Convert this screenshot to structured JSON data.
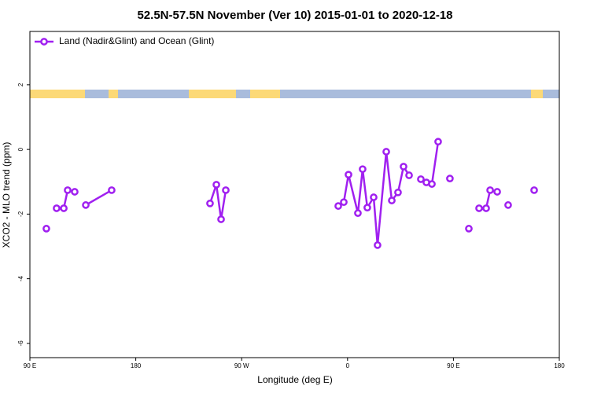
{
  "chart_data": {
    "type": "line",
    "title": "52.5N-57.5N November (Ver 10)   2015-01-01 to 2020-12-18",
    "x_label": "Longitude (deg E)",
    "y_label": "XCO2 - MLO trend (ppm)",
    "xlim": [
      90,
      540
    ],
    "ylim": [
      -6.44,
      3.65
    ],
    "xticks": [
      90,
      180,
      {
        "value": 270,
        "label": "90 W"
      },
      {
        "value": 360,
        "label": "0"
      },
      {
        "value": 450,
        "label": "90 E"
      },
      {
        "value": 540,
        "label": "180"
      }
    ],
    "xtick0_label": "90 E",
    "yticks": [
      2,
      0,
      -2,
      -4,
      -6
    ],
    "legend": "top-left",
    "series": [
      {
        "name": "Land (Nadir&Glint) and Ocean (Glint)",
        "color": "#a020f0",
        "x": [
          104,
          null,
          112.7,
          118.8,
          122.1,
          128.1,
          null,
          137.5,
          159.5,
          null,
          243.1,
          248.5,
          252.5,
          256.5,
          null,
          352.1,
          356.8,
          360.8,
          368.8,
          372.8,
          376.8,
          382.2,
          385.5,
          392.9,
          397.6,
          402.9,
          407.6,
          412.3,
          null,
          422.3,
          427.0,
          431.7,
          437.0,
          null,
          447.0,
          null,
          463.1,
          null,
          471.8,
          477.8,
          481.2,
          487.2,
          null,
          496.5,
          null,
          518.6
        ],
        "values": [
          -2.45,
          null,
          -1.82,
          -1.82,
          -1.26,
          -1.31,
          null,
          -1.72,
          -1.26,
          null,
          -1.67,
          -1.09,
          -2.16,
          -1.26,
          null,
          -1.75,
          -1.63,
          -0.78,
          -1.97,
          -0.61,
          -1.8,
          -1.48,
          -2.96,
          -0.07,
          -1.58,
          -1.33,
          -0.53,
          -0.8,
          null,
          -0.92,
          -1.02,
          -1.07,
          0.24,
          null,
          -0.9,
          null,
          -2.45,
          null,
          -1.82,
          -1.82,
          -1.26,
          -1.31,
          null,
          -1.72,
          null,
          -1.26
        ]
      }
    ]
  }
}
